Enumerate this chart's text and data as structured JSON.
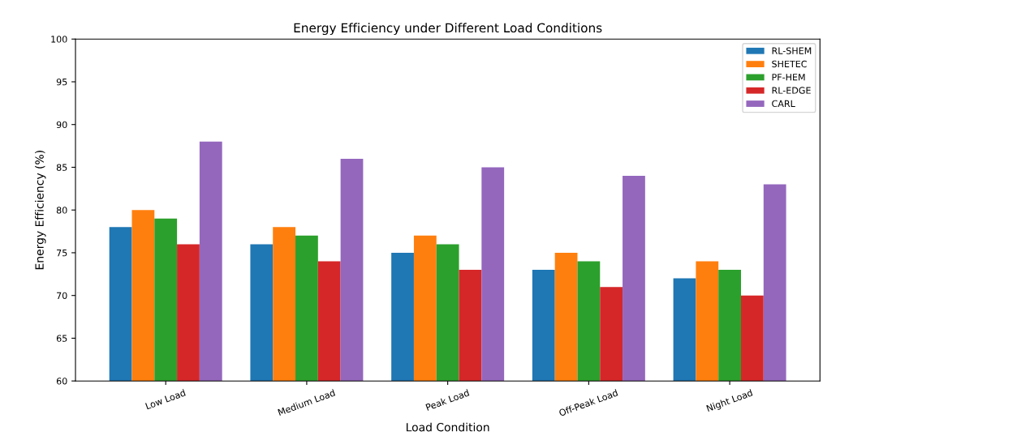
{
  "chart_data": {
    "type": "bar",
    "title": "Energy Efficiency under Different Load Conditions",
    "xlabel": "Load Condition",
    "ylabel": "Energy Efficiency (%)",
    "categories": [
      "Low Load",
      "Medium Load",
      "Peak Load",
      "Off-Peak Load",
      "Night Load"
    ],
    "series": [
      {
        "name": "RL-SHEM",
        "color": "#1f77b4",
        "values": [
          78,
          76,
          75,
          73,
          72
        ]
      },
      {
        "name": "SHETEC",
        "color": "#ff7f0e",
        "values": [
          80,
          78,
          77,
          75,
          74
        ]
      },
      {
        "name": "PF-HEM",
        "color": "#2ca02c",
        "values": [
          79,
          77,
          76,
          74,
          73
        ]
      },
      {
        "name": "RL-EDGE",
        "color": "#d62728",
        "values": [
          76,
          74,
          73,
          71,
          70
        ]
      },
      {
        "name": "CARL",
        "color": "#9467bd",
        "values": [
          88,
          86,
          85,
          84,
          83
        ]
      }
    ],
    "ylim": [
      60,
      100
    ],
    "yticks": [
      60,
      65,
      70,
      75,
      80,
      85,
      90,
      95,
      100
    ],
    "legend": "top right",
    "grid": false
  }
}
